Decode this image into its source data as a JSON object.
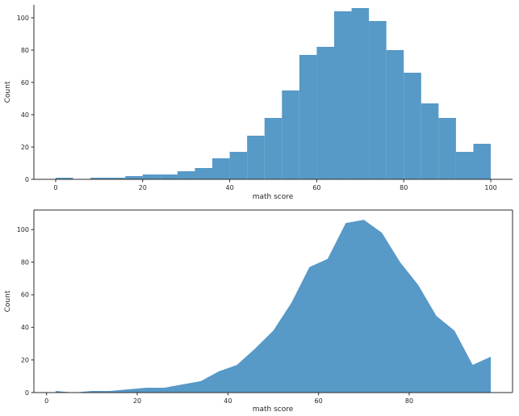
{
  "figure": {
    "background": "#ffffff",
    "text_color": "#262626",
    "spine_color": "#2b2b2b"
  },
  "chart_data": [
    {
      "type": "bar",
      "title": "",
      "xlabel": "math score",
      "ylabel": "Count",
      "color": "#5799c7",
      "bin_start": 0,
      "bin_width": 4,
      "values": [
        1,
        0,
        1,
        1,
        2,
        3,
        3,
        5,
        7,
        13,
        17,
        27,
        38,
        55,
        77,
        82,
        104,
        106,
        98,
        80,
        66,
        47,
        38,
        17,
        22
      ],
      "xticks": [
        0,
        20,
        40,
        60,
        80,
        100
      ],
      "yticks": [
        0,
        20,
        40,
        60,
        80,
        100
      ],
      "xlim": [
        -5,
        105
      ],
      "ylim": [
        0,
        108
      ],
      "spines": [
        "left",
        "bottom"
      ],
      "grid": false,
      "legend": null
    },
    {
      "type": "area",
      "title": "",
      "xlabel": "math score",
      "ylabel": "Count",
      "color": "#5799c7",
      "x": [
        2,
        6,
        10,
        14,
        18,
        22,
        26,
        30,
        34,
        38,
        42,
        46,
        50,
        54,
        58,
        62,
        66,
        70,
        74,
        78,
        82,
        86,
        90,
        94,
        98
      ],
      "values": [
        1,
        0,
        1,
        1,
        2,
        3,
        3,
        5,
        7,
        13,
        17,
        27,
        38,
        55,
        77,
        82,
        104,
        106,
        98,
        80,
        66,
        47,
        38,
        17,
        22
      ],
      "xticks": [
        0,
        20,
        40,
        60,
        80
      ],
      "yticks": [
        0,
        20,
        40,
        60,
        80,
        100
      ],
      "xlim": [
        -2.8,
        102.8
      ],
      "ylim": [
        0,
        112
      ],
      "spines": [
        "left",
        "bottom",
        "top",
        "right"
      ],
      "grid": false,
      "legend": null
    }
  ]
}
